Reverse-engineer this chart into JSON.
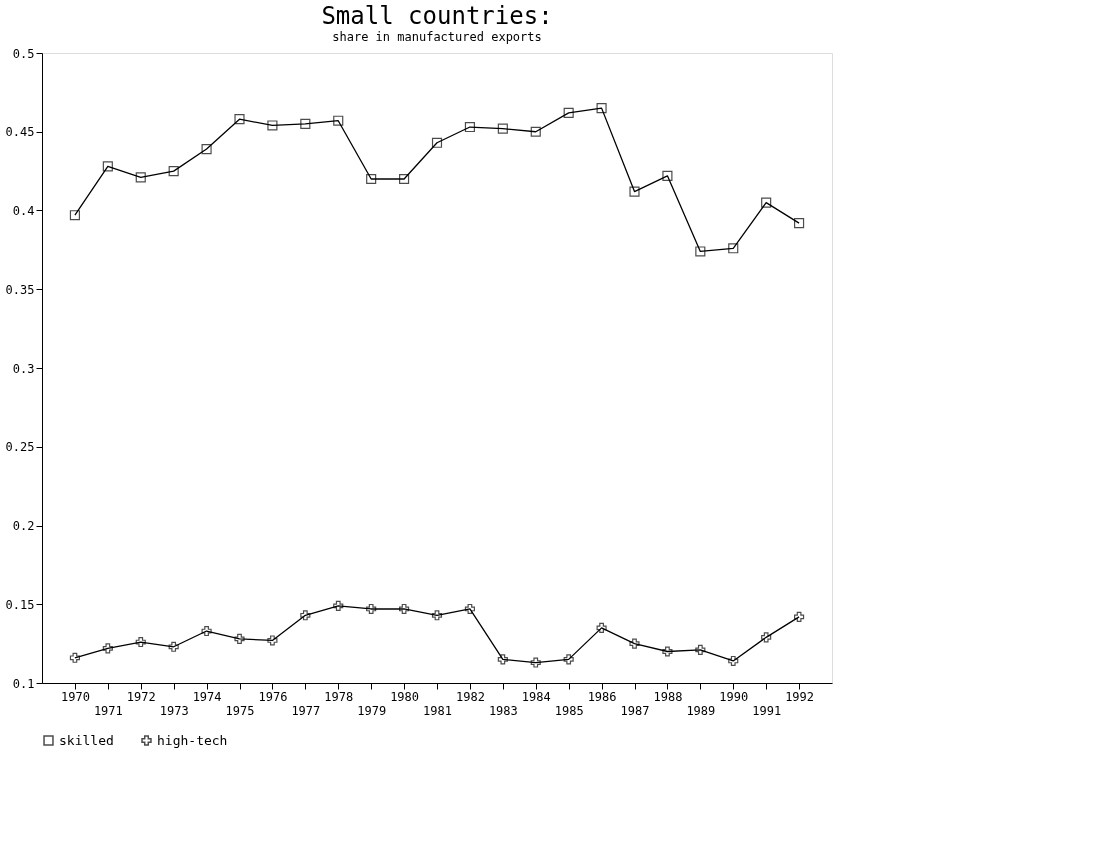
{
  "chart_data": {
    "type": "line",
    "title": "Small countries:",
    "subtitle": "share in manufactured exports",
    "categories": [
      "1970",
      "1971",
      "1972",
      "1973",
      "1974",
      "1975",
      "1976",
      "1977",
      "1978",
      "1979",
      "1980",
      "1981",
      "1982",
      "1983",
      "1984",
      "1985",
      "1986",
      "1987",
      "1988",
      "1989",
      "1990",
      "1991",
      "1992"
    ],
    "series": [
      {
        "name": "skilled",
        "color": "#000000",
        "marker": "square",
        "values": [
          0.397,
          0.428,
          0.421,
          0.425,
          0.439,
          0.458,
          0.454,
          0.455,
          0.457,
          0.42,
          0.42,
          0.443,
          0.453,
          0.452,
          0.45,
          0.462,
          0.465,
          0.412,
          0.422,
          0.374,
          0.376,
          0.405,
          0.392
        ]
      },
      {
        "name": "high-tech",
        "color": "#000000",
        "marker": "cross",
        "values": [
          0.116,
          0.122,
          0.126,
          0.123,
          0.133,
          0.128,
          0.127,
          0.143,
          0.149,
          0.147,
          0.147,
          0.143,
          0.147,
          0.115,
          0.113,
          0.115,
          0.135,
          0.125,
          0.12,
          0.121,
          0.114,
          0.129,
          0.142
        ]
      }
    ],
    "ylim": [
      0.1,
      0.5
    ],
    "yticks": [
      0.1,
      0.15,
      0.2,
      0.25,
      0.3,
      0.35,
      0.4,
      0.45,
      0.5
    ],
    "grid": false,
    "legend": "bottom",
    "line_style": "solid"
  }
}
